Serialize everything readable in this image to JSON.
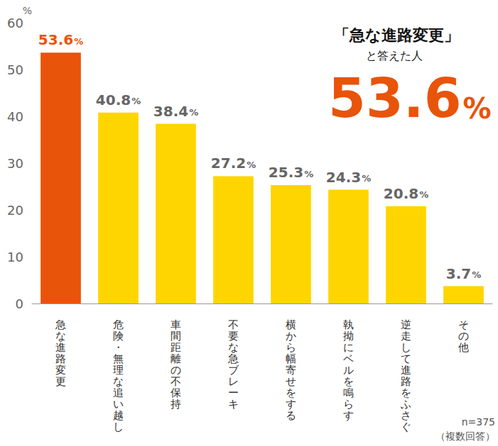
{
  "chart_data": {
    "type": "bar",
    "ylabel": "%",
    "categories": [
      "急な進路変更",
      "危険・無理な追い越し",
      "車間距離の不保持",
      "不要な急ブレーキ",
      "横から幅寄せをする",
      "執拗にベルを鳴らす",
      "逆走して進路をふさぐ",
      "その他"
    ],
    "values": [
      53.6,
      40.8,
      38.4,
      27.2,
      25.3,
      24.3,
      20.8,
      3.7
    ],
    "value_labels": [
      "53.6%",
      "40.8%",
      "38.4%",
      "27.2%",
      "25.3%",
      "24.3%",
      "20.8%",
      "3.7%"
    ],
    "colors": [
      "#e8540a",
      "#ffd500",
      "#ffd500",
      "#ffd500",
      "#ffd500",
      "#ffd500",
      "#ffd500",
      "#ffd500"
    ],
    "ylim": [
      0,
      60
    ],
    "yticks": [
      0,
      10,
      20,
      30,
      40,
      50,
      60
    ],
    "grid": false,
    "data_labels": true,
    "annotations": [
      "「急な進路変更」",
      "と答えた人",
      "53.6%"
    ],
    "notes": [
      "n=375",
      "（複数回答）"
    ]
  }
}
